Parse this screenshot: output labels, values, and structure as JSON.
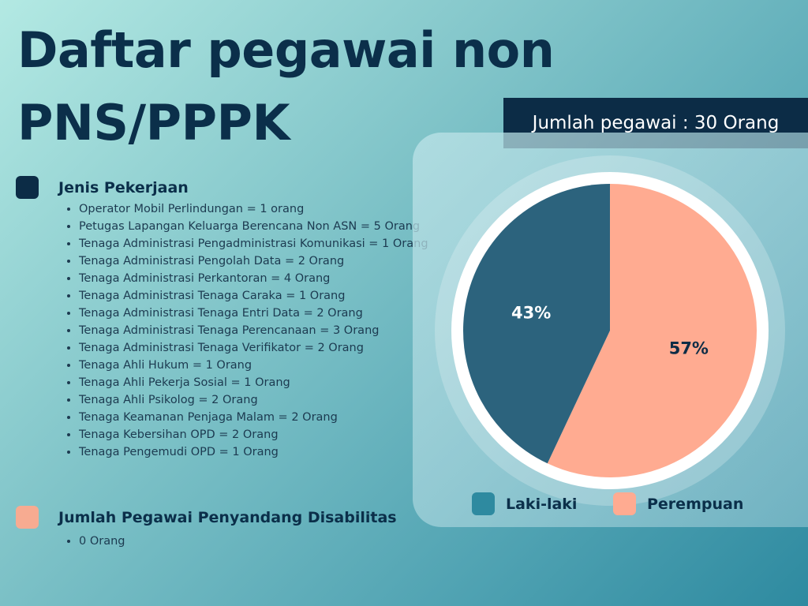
{
  "title_line1": "Daftar pegawai non",
  "title_line2": "PNS/PPPK",
  "total_label": "Jumlah pegawai : 30 Orang",
  "section_jobs": {
    "label": "Jenis Pekerjaan",
    "color": "#0c2c46",
    "items": [
      "Operator Mobil Perlindungan = 1 orang",
      "Petugas Lapangan Keluarga Berencana  Non ASN = 5 Orang",
      "Tenaga Administrasi Pengadministrasi Komunikasi = 1 Orang",
      "Tenaga Administrasi Pengolah Data = 2 Orang",
      "Tenaga Administrasi Perkantoran = 4 Orang",
      "Tenaga Administrasi Tenaga Caraka = 1 Orang",
      "Tenaga Administrasi Tenaga Entri Data = 2 Orang",
      "Tenaga Administrasi Tenaga Perencanaan = 3 Orang",
      "Tenaga Administrasi Tenaga Verifikator = 2 Orang",
      "Tenaga Ahli Hukum = 1 Orang",
      "Tenaga Ahli Pekerja Sosial = 1 Orang",
      "Tenaga Ahli Psikolog = 2 Orang",
      "Tenaga Keamanan Penjaga Malam = 2 Orang",
      "Tenaga Kebersihan OPD = 2 Orang",
      "Tenaga Pengemudi OPD = 1 Orang"
    ]
  },
  "section_disability": {
    "label": "Jumlah Pegawai Penyandang Disabilitas",
    "color": "#f7ab91",
    "items": [
      "0 Orang"
    ]
  },
  "chart_data": {
    "type": "pie",
    "title": "",
    "slices": [
      {
        "label": "Laki-laki",
        "value": 43,
        "display": "43%",
        "color": "#2c637d",
        "label_color": "#ffffff"
      },
      {
        "label": "Perempuan",
        "value": 57,
        "display": "57%",
        "color": "#ffab91",
        "label_color": "#0c2c46"
      }
    ],
    "legend_position": "bottom",
    "legend": [
      {
        "label": "Laki-laki",
        "color": "#2e8aa0"
      },
      {
        "label": "Perempuan",
        "color": "#ffab91"
      }
    ]
  }
}
